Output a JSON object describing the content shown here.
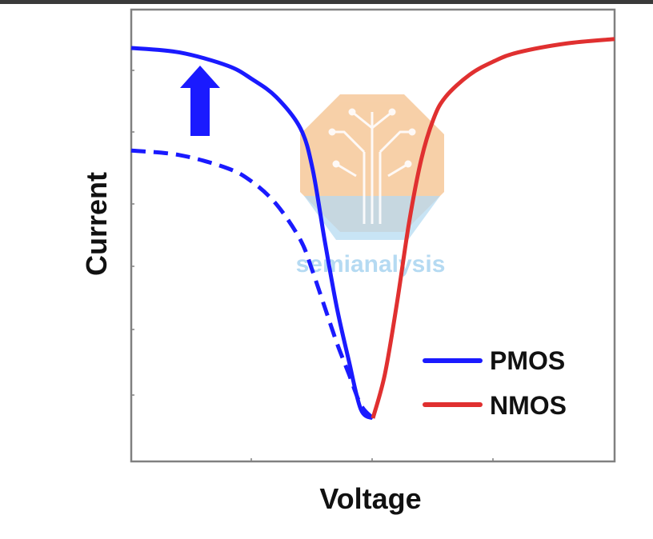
{
  "colors": {
    "pmos": "#1a1aff",
    "nmos": "#e03030",
    "axis": "#808080",
    "text": "#111111",
    "watermark_orange": "#f6c89a",
    "watermark_blue": "#a9d4f0"
  },
  "watermark": {
    "text": "semianalysis",
    "icon": "circuit-tree-logo-icon"
  },
  "chart_data": {
    "type": "line",
    "title": "",
    "xlabel": "Voltage",
    "ylabel": "Current",
    "xlim": [
      -1,
      1
    ],
    "ylim": [
      0,
      1
    ],
    "grid": false,
    "ticks": "unlabeled",
    "legend": {
      "placement": "bottom-right",
      "entries": [
        {
          "label": "PMOS",
          "color": "#1a1aff"
        },
        {
          "label": "NMOS",
          "color": "#e03030"
        }
      ]
    },
    "annotations": [
      {
        "type": "arrow",
        "direction": "up",
        "color": "#1a1aff",
        "meaning": "PMOS current increase"
      }
    ],
    "series": [
      {
        "name": "PMOS",
        "style": "solid",
        "color": "#1a1aff",
        "x": [
          -1.0,
          -0.8,
          -0.6,
          -0.5,
          -0.4,
          -0.3,
          -0.25,
          -0.2,
          -0.15,
          -0.1,
          -0.05,
          0.0
        ],
        "y": [
          0.93,
          0.92,
          0.89,
          0.86,
          0.82,
          0.75,
          0.66,
          0.5,
          0.35,
          0.23,
          0.12,
          0.1
        ]
      },
      {
        "style": "dashed",
        "color": "#1a1aff",
        "x": [
          -1.0,
          -0.8,
          -0.6,
          -0.5,
          -0.4,
          -0.3,
          -0.25,
          -0.2,
          -0.15,
          -0.1,
          -0.05,
          0.0
        ],
        "y": [
          0.7,
          0.69,
          0.66,
          0.63,
          0.58,
          0.5,
          0.43,
          0.35,
          0.27,
          0.2,
          0.13,
          0.1
        ]
      },
      {
        "name": "NMOS",
        "style": "solid",
        "color": "#e03030",
        "x": [
          0.0,
          0.05,
          0.1,
          0.15,
          0.2,
          0.25,
          0.3,
          0.4,
          0.5,
          0.6,
          0.8,
          1.0
        ],
        "y": [
          0.1,
          0.2,
          0.36,
          0.54,
          0.68,
          0.77,
          0.82,
          0.87,
          0.9,
          0.92,
          0.94,
          0.95
        ]
      }
    ]
  }
}
